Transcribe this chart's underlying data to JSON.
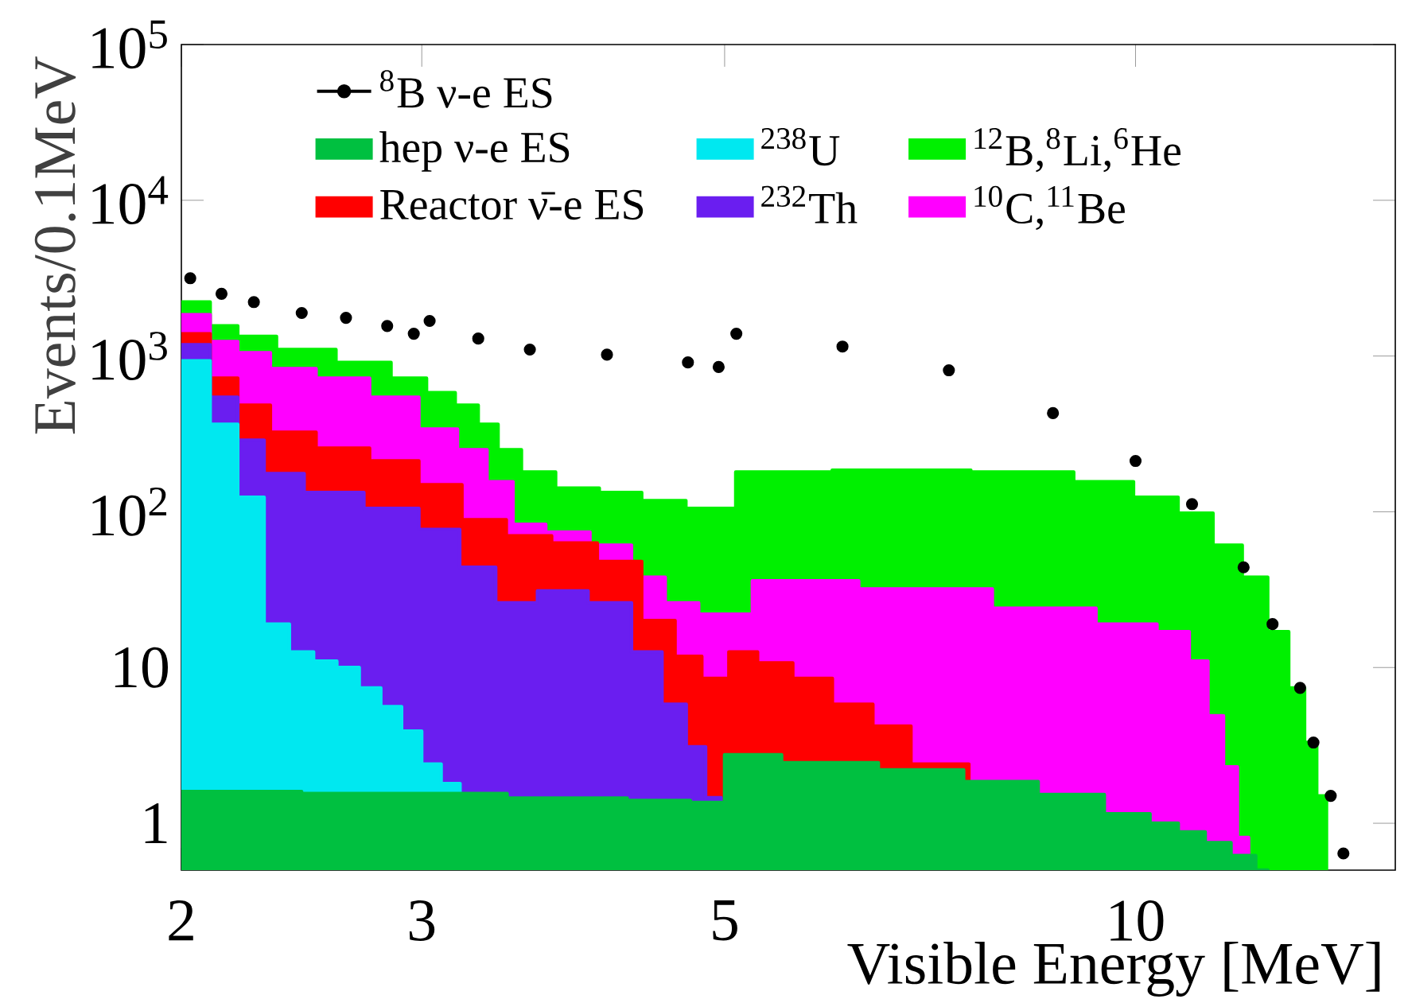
{
  "chart_data": {
    "type": "area",
    "xlabel": "Visible Energy [MeV]",
    "ylabel": "Events/0.1MeV",
    "log": "xy",
    "xlim": [
      2,
      15.5
    ],
    "ylim": [
      0.5,
      100000
    ],
    "xticks": [
      2,
      3,
      5,
      10
    ],
    "yticks": [
      {
        "value": 100000,
        "label": "10$^{5}$"
      },
      {
        "value": 10000,
        "label": "10$^{4}$"
      },
      {
        "value": 1000,
        "label": "10$^{3}$"
      },
      {
        "value": 100,
        "label": "10$^{2}$"
      },
      10,
      1
    ],
    "legend": "top",
    "series": [
      {
        "name": "$^{8}$B ν-e ES",
        "type": "scatter",
        "color": "#000000",
        "x": [
          2.03,
          2.14,
          2.26,
          2.45,
          2.64,
          2.83,
          2.96,
          3.04,
          3.3,
          3.6,
          4.1,
          4.7,
          4.95,
          5.1,
          6.1,
          7.3,
          8.7,
          10.0,
          11.0,
          12.0,
          12.6,
          13.2,
          13.5,
          13.9,
          14.2
        ],
        "values": [
          3160,
          2510,
          2220,
          1890,
          1760,
          1560,
          1390,
          1680,
          1295,
          1100,
          1020,
          910,
          850,
          1390,
          1150,
          810,
          430,
          212,
          112,
          44,
          19,
          7.4,
          3.3,
          1.5,
          0.64
        ]
      },
      {
        "name": "hep ν-e ES",
        "color": "#00c040",
        "x": [
          2.0,
          3.0,
          4.0,
          4.5,
          4.95,
          5.05,
          6.0,
          7.0,
          8.0,
          9.0,
          10.0,
          10.5,
          11.0,
          11.5,
          12.0,
          12.5
        ],
        "values": [
          1.6,
          1.55,
          1.45,
          1.4,
          1.36,
          2.75,
          2.45,
          2.2,
          1.85,
          1.53,
          1.15,
          1.0,
          0.88,
          0.75,
          0.62,
          0.5
        ]
      },
      {
        "name": "$^{238}$U",
        "color": "#00e8f0",
        "x": [
          2.0,
          2.05,
          2.15,
          2.25,
          2.35,
          2.45,
          2.55,
          2.65,
          2.75,
          2.85,
          2.95,
          3.05,
          3.15,
          3.2
        ],
        "values": [
          930,
          930,
          364,
          124,
          19,
          12.6,
          11,
          10,
          7.4,
          5.6,
          3.9,
          2.4,
          1.8,
          1.8
        ]
      },
      {
        "name": "$^{12}$B,$^{8}$Li,$^{6}$He",
        "color": "#00f000",
        "x": [
          2.0,
          2.05,
          2.15,
          2.25,
          2.45,
          2.75,
          2.95,
          3.1,
          3.25,
          3.35,
          3.475,
          3.625,
          3.9,
          4.2,
          4.5,
          4.875,
          5.325,
          6.75,
          8.5,
          9.55,
          10.4,
          11.1,
          11.7,
          12.25,
          12.75,
          13.15,
          13.45,
          13.7,
          13.8
        ],
        "values": [
          2220,
          2220,
          1560,
          1335,
          1100,
          910,
          720,
          582,
          483,
          364,
          250,
          180,
          142,
          133,
          118,
          105,
          180,
          185,
          180,
          156,
          124,
          98,
          61,
          38,
          17,
          7.4,
          3.3,
          1.5,
          1.5
        ]
      },
      {
        "name": "Reactor ν̄-e ES",
        "color": "#ff0000",
        "x": [
          2.0,
          2.05,
          2.15,
          2.25,
          2.4,
          2.625,
          2.875,
          3.1,
          3.325,
          3.6,
          3.875,
          4.2,
          4.5,
          4.7,
          4.925,
          5.15,
          5.425,
          5.8,
          6.2,
          6.65,
          7.05,
          7.325,
          7.5,
          7.55
        ],
        "values": [
          1390,
          1390,
          720,
          483,
          324,
          256,
          212,
          149,
          89,
          70,
          63,
          48,
          20,
          11.8,
          8.5,
          12.6,
          10.7,
          8.5,
          5.8,
          4.2,
          2.4,
          null,
          2.4,
          2.4
        ]
      },
      {
        "name": "$^{232}$Th",
        "color": "#6a1ef0",
        "x": [
          2.0,
          2.05,
          2.15,
          2.25,
          2.35,
          2.575,
          2.875,
          3.1,
          3.3,
          3.5,
          3.8,
          4.15,
          4.4,
          4.6,
          4.775,
          4.91,
          4.97
        ],
        "values": [
          1180,
          1180,
          543,
          288,
          176,
          133,
          105,
          77,
          44,
          26,
          31,
          26,
          12.6,
          5.8,
          3.1,
          1.46,
          1.46
        ]
      },
      {
        "name": "$^{10}$C,$^{11}$Be",
        "color": "#ff00ff",
        "x": [
          2.0,
          2.05,
          2.15,
          2.25,
          2.4,
          2.625,
          2.875,
          3.1,
          3.275,
          3.425,
          3.575,
          3.825,
          4.15,
          4.4,
          4.65,
          4.925,
          5.575,
          7.05,
          8.75,
          10.0,
          10.75,
          11.15,
          11.45,
          11.75,
          12.0,
          12.1
        ],
        "values": [
          1840,
          1840,
          1240,
          1050,
          830,
          720,
          543,
          340,
          250,
          156,
          83,
          74,
          61,
          38,
          26,
          22,
          36,
          32,
          24,
          19,
          17,
          11,
          4.9,
          2.3,
          0.81,
          0.81
        ]
      }
    ]
  }
}
